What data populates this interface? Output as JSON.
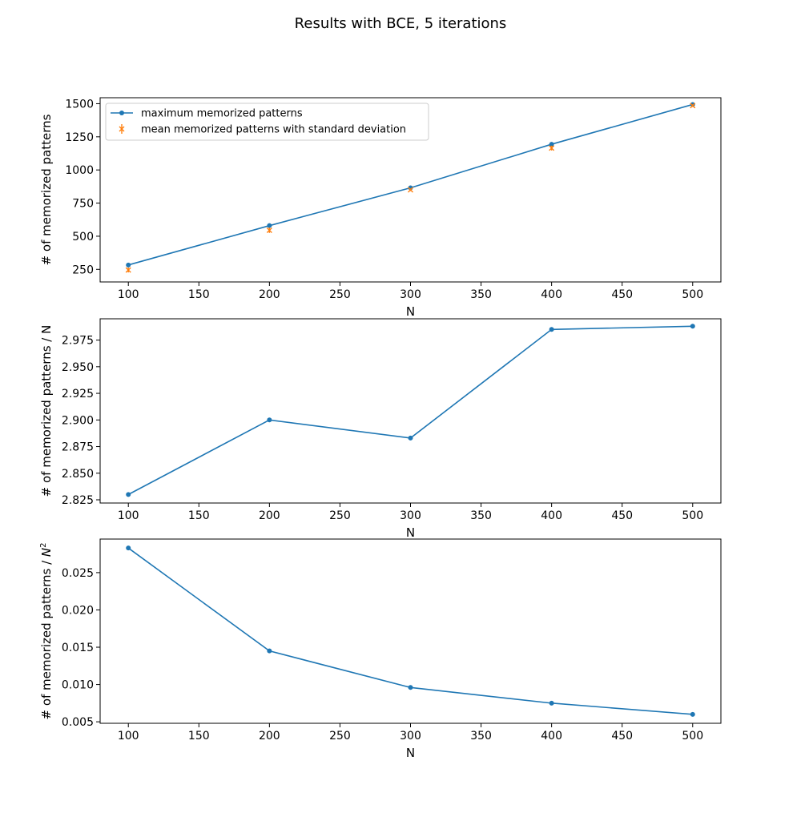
{
  "figure": {
    "suptitle": "Results with BCE, 5 iterations"
  },
  "colors": {
    "line": "#1f77b4",
    "errorbar": "#ff7f0e",
    "axes": "#000000",
    "background": "#ffffff"
  },
  "chart_data": [
    {
      "type": "line",
      "xlabel": "N",
      "ylabel": "# of memorized patterns",
      "xlim": [
        80,
        520
      ],
      "ylim": [
        155,
        1545
      ],
      "xticks": [
        100,
        150,
        200,
        250,
        300,
        350,
        400,
        450,
        500
      ],
      "yticks": [
        250,
        500,
        750,
        1000,
        1250,
        1500
      ],
      "ytick_labels": [
        "250",
        "500",
        "750",
        "1000",
        "1250",
        "1500"
      ],
      "grid": false,
      "legend": "top-left",
      "series": [
        {
          "name": "maximum memorized patterns",
          "kind": "line-markers",
          "x": [
            100,
            200,
            300,
            400,
            500
          ],
          "y": [
            283,
            580,
            865,
            1194,
            1494
          ]
        },
        {
          "name": "mean memorized patterns with standard deviation",
          "kind": "errorbar",
          "x": [
            100,
            200,
            300,
            400,
            500
          ],
          "y": [
            245,
            545,
            850,
            1165,
            1485
          ],
          "yerr": [
            18,
            20,
            10,
            18,
            10
          ]
        }
      ]
    },
    {
      "type": "line",
      "xlabel": "N",
      "ylabel": "# of memorized patterns / N",
      "xlim": [
        80,
        520
      ],
      "ylim": [
        2.822,
        2.995
      ],
      "xticks": [
        100,
        150,
        200,
        250,
        300,
        350,
        400,
        450,
        500
      ],
      "yticks": [
        2.825,
        2.85,
        2.875,
        2.9,
        2.925,
        2.95,
        2.975
      ],
      "ytick_labels": [
        "2.825",
        "2.850",
        "2.875",
        "2.900",
        "2.925",
        "2.950",
        "2.975"
      ],
      "grid": false,
      "series": [
        {
          "kind": "line-markers",
          "x": [
            100,
            200,
            300,
            400,
            500
          ],
          "y": [
            2.83,
            2.9,
            2.883,
            2.985,
            2.988
          ]
        }
      ]
    },
    {
      "type": "line",
      "xlabel": "N",
      "ylabel_prefix": "# of memorized patterns / ",
      "ylabel_math": "N",
      "ylabel_sup": "2",
      "xlim": [
        80,
        520
      ],
      "ylim": [
        0.0048,
        0.0295
      ],
      "xticks": [
        100,
        150,
        200,
        250,
        300,
        350,
        400,
        450,
        500
      ],
      "yticks": [
        0.005,
        0.01,
        0.015,
        0.02,
        0.025
      ],
      "ytick_labels": [
        "0.005",
        "0.010",
        "0.015",
        "0.020",
        "0.025"
      ],
      "grid": false,
      "series": [
        {
          "kind": "line-markers",
          "x": [
            100,
            200,
            300,
            400,
            500
          ],
          "y": [
            0.0283,
            0.0145,
            0.0096,
            0.0075,
            0.006
          ]
        }
      ]
    }
  ]
}
